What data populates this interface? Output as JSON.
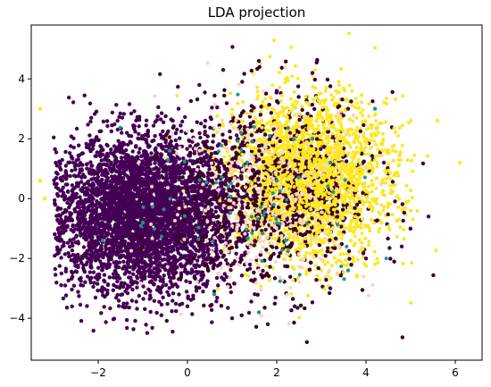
{
  "chart_data": {
    "type": "scatter",
    "title": "LDA projection",
    "xlabel": "",
    "ylabel": "",
    "xlim": [
      -3.5,
      6.6
    ],
    "ylim": [
      -5.4,
      5.8
    ],
    "x_ticks": [
      -2,
      0,
      2,
      4,
      6
    ],
    "y_ticks": [
      -4,
      -2,
      0,
      2,
      4
    ],
    "x_tick_labels": [
      "−2",
      "0",
      "2",
      "4",
      "6"
    ],
    "y_tick_labels": [
      "−4",
      "−2",
      "0",
      "2",
      "4"
    ],
    "grid": false,
    "legend": "none",
    "series": [
      {
        "color": "#440154",
        "description_points": [
          [
            -2.8,
            0.6
          ],
          [
            -2.6,
            -0.5
          ],
          [
            -2.4,
            1.2
          ],
          [
            -2.2,
            -1.0
          ],
          [
            -2.0,
            0.3
          ],
          [
            -1.8,
            1.5
          ],
          [
            -1.6,
            -1.8
          ],
          [
            -1.4,
            0.8
          ],
          [
            -1.2,
            -0.6
          ],
          [
            -1.0,
            2.0
          ],
          [
            -0.8,
            -2.6
          ],
          [
            -0.6,
            1.1
          ],
          [
            -0.4,
            -1.4
          ],
          [
            -0.2,
            3.0
          ],
          [
            0.0,
            -3.6
          ],
          [
            0.2,
            0.4
          ],
          [
            0.4,
            2.6
          ],
          [
            0.6,
            -3.1
          ],
          [
            0.8,
            4.3
          ],
          [
            1.0,
            -4.0
          ],
          [
            1.2,
            1.8
          ],
          [
            1.4,
            -2.2
          ],
          [
            1.6,
            4.6
          ],
          [
            1.8,
            -4.2
          ],
          [
            2.0,
            3.6
          ],
          [
            2.4,
            -3.6
          ],
          [
            2.8,
            4.2
          ],
          [
            3.2,
            -3.0
          ],
          [
            3.6,
            3.0
          ],
          [
            4.0,
            -2.0
          ],
          [
            4.4,
            1.2
          ],
          [
            4.8,
            -1.6
          ],
          [
            5.4,
            -0.6
          ]
        ]
      },
      {
        "color": "#fde725",
        "description_points": [
          [
            0.6,
            1.0
          ],
          [
            1.0,
            2.8
          ],
          [
            1.4,
            -1.0
          ],
          [
            1.8,
            0.6
          ],
          [
            2.2,
            4.0
          ],
          [
            2.6,
            2.2
          ],
          [
            3.0,
            -1.4
          ],
          [
            3.2,
            1.6
          ],
          [
            3.6,
            0.2
          ],
          [
            3.8,
            -2.6
          ],
          [
            4.2,
            2.8
          ],
          [
            4.6,
            1.6
          ],
          [
            5.0,
            -0.4
          ],
          [
            5.6,
            2.6
          ],
          [
            6.1,
            1.2
          ],
          [
            -3.3,
            0.6
          ],
          [
            -3.3,
            3.0
          ],
          [
            -3.2,
            0.0
          ]
        ]
      },
      {
        "color": "#21918c",
        "description_points": [
          [
            -1.0,
            -0.8
          ],
          [
            -0.4,
            1.6
          ],
          [
            0.6,
            -3.2
          ],
          [
            1.2,
            2.2
          ],
          [
            1.6,
            -3.8
          ],
          [
            2.2,
            -1.4
          ],
          [
            2.8,
            2.0
          ],
          [
            3.2,
            1.2
          ],
          [
            3.6,
            -2.4
          ],
          [
            4.2,
            3.0
          ],
          [
            -1.9,
            -1.4
          ],
          [
            2.0,
            0.6
          ]
        ]
      },
      {
        "color": "#fbd3c4",
        "description_points": [
          [
            0.4,
            -0.4
          ],
          [
            1.0,
            1.2
          ],
          [
            1.6,
            -2.4
          ],
          [
            2.0,
            2.4
          ],
          [
            2.6,
            -0.8
          ],
          [
            3.0,
            0.8
          ],
          [
            3.4,
            -1.6
          ]
        ]
      }
    ]
  }
}
